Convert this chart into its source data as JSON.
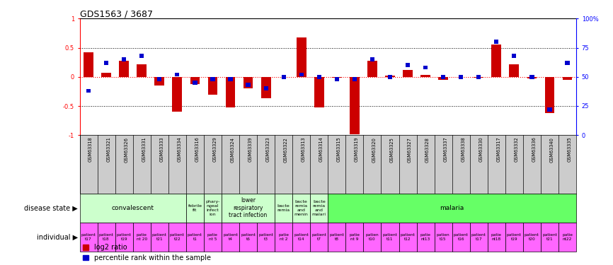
{
  "title": "GDS1563 / 3687",
  "samples": [
    "GSM63318",
    "GSM63321",
    "GSM63326",
    "GSM63331",
    "GSM63333",
    "GSM63334",
    "GSM63316",
    "GSM63329",
    "GSM63324",
    "GSM63339",
    "GSM63323",
    "GSM63322",
    "GSM63313",
    "GSM63314",
    "GSM63315",
    "GSM63319",
    "GSM63320",
    "GSM63325",
    "GSM63327",
    "GSM63328",
    "GSM63337",
    "GSM63338",
    "GSM63330",
    "GSM63317",
    "GSM63332",
    "GSM63336",
    "GSM63340",
    "GSM63335"
  ],
  "log2_ratio": [
    0.42,
    0.07,
    0.27,
    0.22,
    -0.15,
    -0.6,
    -0.12,
    -0.3,
    -0.52,
    -0.2,
    -0.37,
    0.0,
    0.68,
    -0.52,
    -0.02,
    -0.98,
    0.28,
    0.02,
    0.12,
    0.03,
    -0.05,
    0.0,
    -0.02,
    0.55,
    0.22,
    -0.03,
    -0.62,
    -0.05
  ],
  "pct_rank": [
    0.38,
    0.62,
    0.65,
    0.68,
    0.48,
    0.52,
    0.45,
    0.48,
    0.48,
    0.43,
    0.4,
    0.5,
    0.52,
    0.5,
    0.48,
    0.48,
    0.65,
    0.5,
    0.6,
    0.58,
    0.5,
    0.5,
    0.5,
    0.8,
    0.68,
    0.5,
    0.22,
    0.62
  ],
  "disease_groups": [
    {
      "label": "convalescent",
      "start": 0,
      "end": 6,
      "color": "#ccffcc"
    },
    {
      "label": "febrile\nfit",
      "start": 6,
      "end": 7,
      "color": "#ccffcc"
    },
    {
      "label": "phary-\nngeal\ninfect\nion",
      "start": 7,
      "end": 8,
      "color": "#ccffcc"
    },
    {
      "label": "lower\nrespiratory\ntract infection",
      "start": 8,
      "end": 11,
      "color": "#ccffcc"
    },
    {
      "label": "bacte\nremia",
      "start": 11,
      "end": 12,
      "color": "#ccffcc"
    },
    {
      "label": "bacte\nremia\nand\nmenin",
      "start": 12,
      "end": 13,
      "color": "#ccffcc"
    },
    {
      "label": "bacte\nremia\nand\nmalari",
      "start": 13,
      "end": 14,
      "color": "#ccffcc"
    },
    {
      "label": "malaria",
      "start": 14,
      "end": 28,
      "color": "#66ff66"
    }
  ],
  "individual_labels": [
    "patient\nt17",
    "patient\nt18",
    "patient\nt19",
    "patie\nnt 20",
    "patient\nt21",
    "patient\nt22",
    "patient\nt1",
    "patie\nnt 5",
    "patient\nt4",
    "patient\nt6",
    "patient\nt3",
    "patie\nnt 2",
    "patient\nt14",
    "patient\nt7",
    "patient\nt8",
    "patie\nnt 9",
    "patien\nt10",
    "patient\nt11",
    "patient\nt12",
    "patie\nnt13",
    "patien\nt15",
    "patient\nt16",
    "patient\nt17",
    "patie\nnt18",
    "patient\nt19",
    "patient\nt20",
    "patient\nt21",
    "patie\nnt22"
  ],
  "ylim_left": [
    -1,
    1
  ],
  "ylim_right": [
    0,
    100
  ],
  "bar_width": 0.55,
  "red_color": "#cc0000",
  "blue_color": "#0000cc",
  "bg_color": "#ffffff",
  "dotted_line_color": "#000000",
  "zero_line_color": "#ff0000",
  "title_fontsize": 9,
  "tick_fontsize": 6,
  "legend_fontsize": 7,
  "label_fontsize": 7,
  "gsm_label_color": "#cccccc",
  "ind_color": "#ff66ff"
}
